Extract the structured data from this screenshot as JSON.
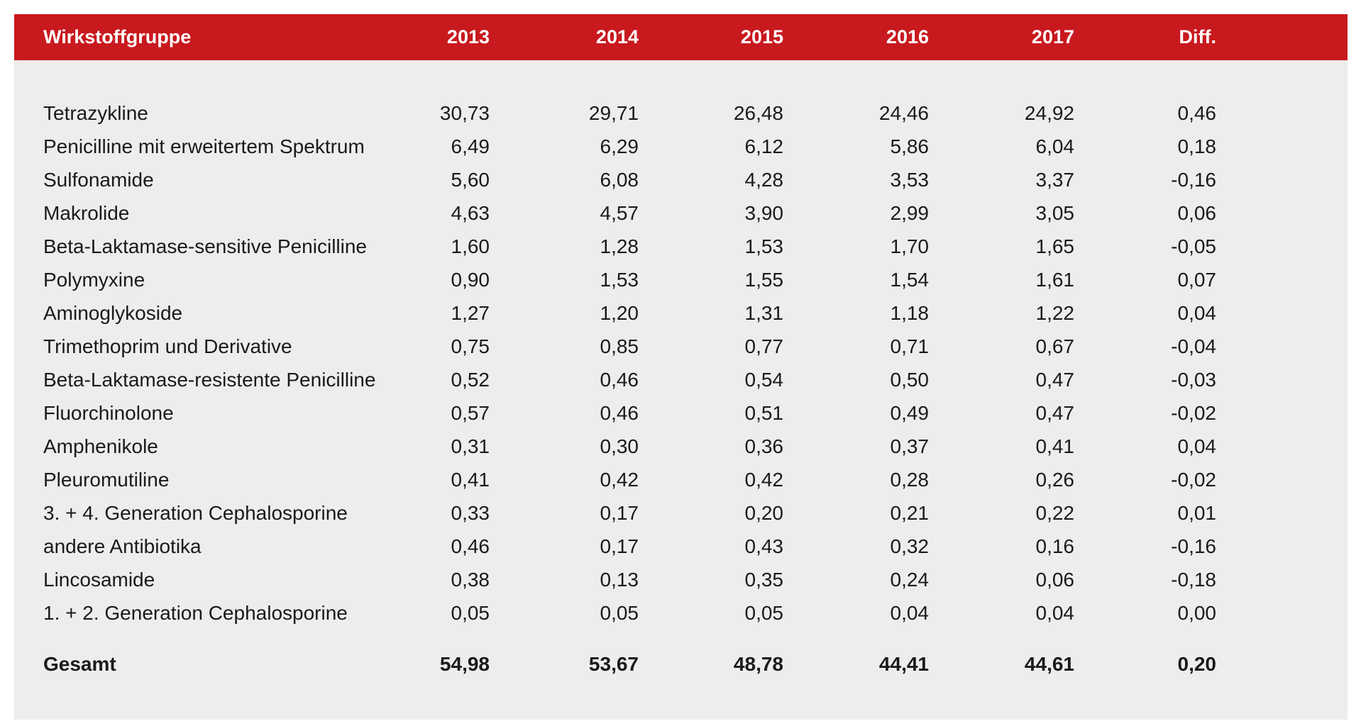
{
  "table": {
    "header": {
      "group": "Wirkstoffgruppe",
      "years": [
        "2013",
        "2014",
        "2015",
        "2016",
        "2017"
      ],
      "diff": "Diff."
    },
    "rows": [
      {
        "name": "Tetrazykline",
        "values": [
          "30,73",
          "29,71",
          "26,48",
          "24,46",
          "24,92"
        ],
        "diff": "0,46"
      },
      {
        "name": "Penicilline mit erweitertem Spektrum",
        "values": [
          "6,49",
          "6,29",
          "6,12",
          "5,86",
          "6,04"
        ],
        "diff": "0,18"
      },
      {
        "name": "Sulfonamide",
        "values": [
          "5,60",
          "6,08",
          "4,28",
          "3,53",
          "3,37"
        ],
        "diff": "-0,16"
      },
      {
        "name": "Makrolide",
        "values": [
          "4,63",
          "4,57",
          "3,90",
          "2,99",
          "3,05"
        ],
        "diff": "0,06"
      },
      {
        "name": "Beta-Laktamase-sensitive Penicilline",
        "values": [
          "1,60",
          "1,28",
          "1,53",
          "1,70",
          "1,65"
        ],
        "diff": "-0,05"
      },
      {
        "name": "Polymyxine",
        "values": [
          "0,90",
          "1,53",
          "1,55",
          "1,54",
          "1,61"
        ],
        "diff": "0,07"
      },
      {
        "name": "Aminoglykoside",
        "values": [
          "1,27",
          "1,20",
          "1,31",
          "1,18",
          "1,22"
        ],
        "diff": "0,04"
      },
      {
        "name": "Trimethoprim und Derivative",
        "values": [
          "0,75",
          "0,85",
          "0,77",
          "0,71",
          "0,67"
        ],
        "diff": "-0,04"
      },
      {
        "name": "Beta-Laktamase-resistente Penicilline",
        "values": [
          "0,52",
          "0,46",
          "0,54",
          "0,50",
          "0,47"
        ],
        "diff": "-0,03"
      },
      {
        "name": "Fluorchinolone",
        "values": [
          "0,57",
          "0,46",
          "0,51",
          "0,49",
          "0,47"
        ],
        "diff": "-0,02"
      },
      {
        "name": "Amphenikole",
        "values": [
          "0,31",
          "0,30",
          "0,36",
          "0,37",
          "0,41"
        ],
        "diff": "0,04"
      },
      {
        "name": "Pleuromutiline",
        "values": [
          "0,41",
          "0,42",
          "0,42",
          "0,28",
          "0,26"
        ],
        "diff": "-0,02"
      },
      {
        "name": "3. + 4. Generation Cephalosporine",
        "values": [
          "0,33",
          "0,17",
          "0,20",
          "0,21",
          "0,22"
        ],
        "diff": "0,01"
      },
      {
        "name": "andere Antibiotika",
        "values": [
          "0,46",
          "0,17",
          "0,43",
          "0,32",
          "0,16"
        ],
        "diff": "-0,16"
      },
      {
        "name": "Lincosamide",
        "values": [
          "0,38",
          "0,13",
          "0,35",
          "0,24",
          "0,06"
        ],
        "diff": "-0,18"
      },
      {
        "name": "1. + 2. Generation Cephalosporine",
        "values": [
          "0,05",
          "0,05",
          "0,05",
          "0,04",
          "0,04"
        ],
        "diff": "0,00"
      }
    ],
    "total": {
      "name": "Gesamt",
      "values": [
        "54,98",
        "53,67",
        "48,78",
        "44,41",
        "44,61"
      ],
      "diff": "0,20"
    }
  },
  "colors": {
    "header_background": "#c8191e",
    "header_text": "#ffffff",
    "panel_background": "#ededec",
    "body_text": "#1a1a1a"
  }
}
